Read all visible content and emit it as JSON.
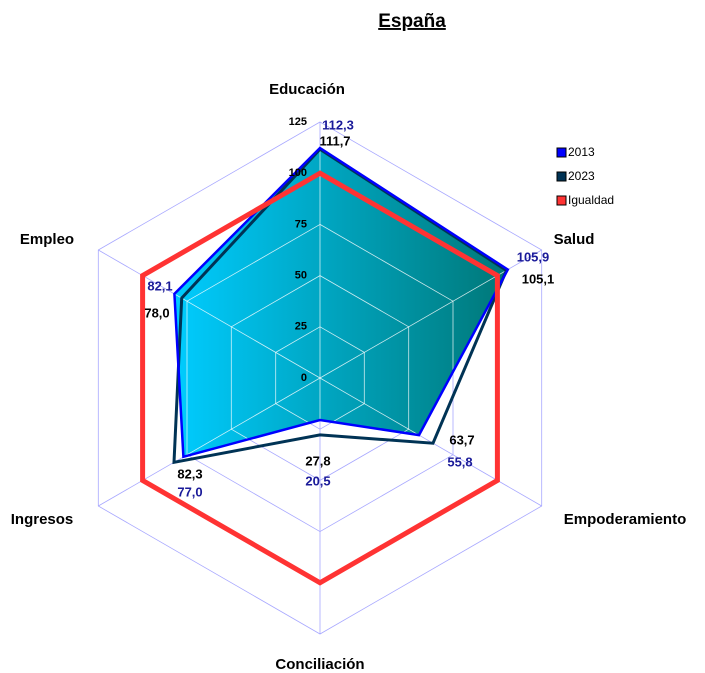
{
  "chart_data": {
    "type": "radar",
    "title": "España",
    "categories": [
      "Educación",
      "Salud",
      "Empoderamiento",
      "Conciliación",
      "Ingresos",
      "Empleo"
    ],
    "series": [
      {
        "name": "2013",
        "color": "#0000ff",
        "values": [
          112.3,
          105.9,
          55.8,
          20.5,
          77.0,
          82.1
        ],
        "value_labels": [
          "112,3",
          "105,9",
          "55,8",
          "20,5",
          "77,0",
          "82,1"
        ]
      },
      {
        "name": "2023",
        "color": "#003355",
        "values": [
          111.7,
          105.1,
          63.7,
          27.8,
          82.3,
          78.0
        ],
        "value_labels": [
          "111,7",
          "105,1",
          "63,7",
          "27,8",
          "82,3",
          "78,0"
        ]
      },
      {
        "name": "Igualdad",
        "color": "#ff3333",
        "values": [
          100,
          100,
          100,
          100,
          100,
          100
        ]
      }
    ],
    "ylim": [
      0,
      125
    ],
    "yticks": [
      0,
      25,
      50,
      75,
      100,
      125
    ],
    "grid": true,
    "legend": "upper right"
  }
}
